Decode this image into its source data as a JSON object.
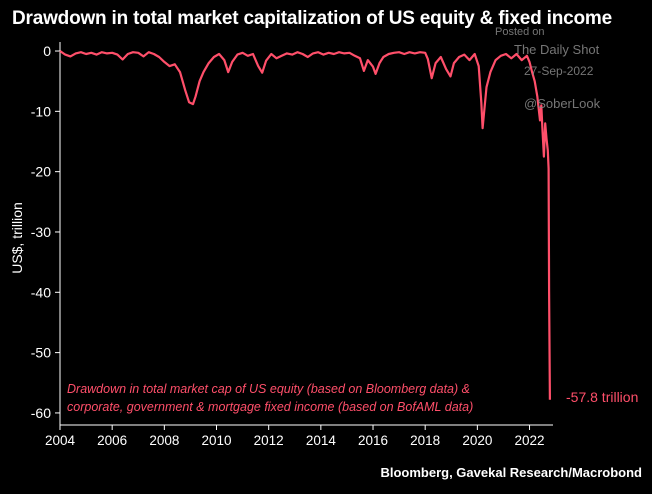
{
  "header": {
    "title": "Drawdown in total market capitalization of US equity & fixed income"
  },
  "footer": {
    "source": "Bloomberg, Gavekal Research/Macrobond"
  },
  "watermark": {
    "line1": "Posted on",
    "line2": "The Daily Shot",
    "line3": "27-Sep-2022",
    "line4": "@SoberLook"
  },
  "colors": {
    "series": "#ff4f6a",
    "annotation": "#ff4f6a",
    "background": "#000000",
    "axis": "#ffffff"
  },
  "chart_data": {
    "type": "line",
    "title": "Drawdown in total market capitalization of US equity & fixed income",
    "ylabel": "US$, trillion",
    "xlabel": "",
    "xlim": [
      2004,
      2022.9
    ],
    "ylim": [
      -62,
      0.5
    ],
    "x_ticks": [
      2004,
      2006,
      2008,
      2010,
      2012,
      2014,
      2016,
      2018,
      2020,
      2022
    ],
    "x_tick_labels": [
      "2004",
      "2006",
      "2008",
      "2010",
      "2012",
      "2014",
      "2016",
      "2018",
      "2020",
      "2022"
    ],
    "y_ticks": [
      0,
      -10,
      -20,
      -30,
      -40,
      -50,
      -60
    ],
    "y_tick_labels": [
      "0",
      "-10",
      "-20",
      "-30",
      "-40",
      "-50",
      "-60"
    ],
    "annotation": "Drawdown in total market cap of US equity (based on Bloomberg data) & corporate, government & mortgage fixed income (based on BofAML data)",
    "end_label": "-57.8 trillion",
    "series": [
      {
        "name": "Drawdown",
        "x": [
          2004.0,
          2004.2,
          2004.4,
          2004.6,
          2004.8,
          2005.0,
          2005.2,
          2005.4,
          2005.6,
          2005.8,
          2006.0,
          2006.2,
          2006.4,
          2006.6,
          2006.8,
          2007.0,
          2007.2,
          2007.4,
          2007.6,
          2007.8,
          2008.0,
          2008.2,
          2008.4,
          2008.6,
          2008.8,
          2008.95,
          2009.1,
          2009.2,
          2009.35,
          2009.5,
          2009.7,
          2009.9,
          2010.1,
          2010.3,
          2010.45,
          2010.6,
          2010.8,
          2011.0,
          2011.2,
          2011.4,
          2011.6,
          2011.75,
          2011.9,
          2012.1,
          2012.3,
          2012.5,
          2012.7,
          2012.9,
          2013.1,
          2013.3,
          2013.5,
          2013.7,
          2013.9,
          2014.1,
          2014.3,
          2014.5,
          2014.7,
          2014.9,
          2015.1,
          2015.3,
          2015.5,
          2015.65,
          2015.8,
          2016.0,
          2016.1,
          2016.25,
          2016.4,
          2016.6,
          2016.8,
          2017.0,
          2017.2,
          2017.4,
          2017.6,
          2017.8,
          2018.0,
          2018.1,
          2018.25,
          2018.4,
          2018.6,
          2018.8,
          2018.97,
          2019.1,
          2019.3,
          2019.5,
          2019.7,
          2019.9,
          2020.05,
          2020.15,
          2020.2,
          2020.25,
          2020.35,
          2020.5,
          2020.7,
          2020.9,
          2021.1,
          2021.3,
          2021.5,
          2021.7,
          2021.9,
          2022.0,
          2022.1,
          2022.2,
          2022.3,
          2022.4,
          2022.45,
          2022.5,
          2022.55,
          2022.6,
          2022.65,
          2022.7,
          2022.73,
          2022.75,
          2022.78
        ],
        "values": [
          0,
          -0.6,
          -0.9,
          -0.4,
          -0.2,
          -0.5,
          -0.3,
          -0.6,
          -0.2,
          -0.4,
          -0.3,
          -0.6,
          -1.4,
          -0.5,
          -0.2,
          -0.3,
          -0.9,
          -0.2,
          -0.5,
          -1.0,
          -1.8,
          -2.5,
          -2.2,
          -3.5,
          -6.5,
          -8.5,
          -8.8,
          -7.5,
          -5.0,
          -3.5,
          -2.0,
          -1.0,
          -0.5,
          -1.5,
          -3.5,
          -1.8,
          -0.6,
          -0.3,
          -0.8,
          -0.5,
          -2.5,
          -3.6,
          -1.6,
          -0.5,
          -1.2,
          -0.8,
          -0.4,
          -0.6,
          -0.2,
          -0.5,
          -1.0,
          -0.4,
          -0.2,
          -0.6,
          -0.3,
          -0.5,
          -0.2,
          -0.4,
          -0.3,
          -0.8,
          -1.2,
          -3.3,
          -1.5,
          -2.6,
          -3.8,
          -2.0,
          -1.0,
          -0.5,
          -0.3,
          -0.2,
          -0.5,
          -0.2,
          -0.4,
          -0.2,
          -0.3,
          -1.3,
          -4.5,
          -2.0,
          -1.0,
          -3.0,
          -4.2,
          -2.0,
          -1.0,
          -0.6,
          -1.5,
          -0.5,
          -2.5,
          -8.5,
          -12.8,
          -10.5,
          -6.0,
          -3.5,
          -1.5,
          -0.8,
          -0.5,
          -1.2,
          -0.5,
          -1.5,
          -0.8,
          -1.8,
          -3.5,
          -5.0,
          -7.5,
          -11.5,
          -9.0,
          -13.5,
          -17.5,
          -12.0,
          -14.5,
          -16.5,
          -19.5,
          -40.0,
          -57.8
        ]
      }
    ]
  }
}
